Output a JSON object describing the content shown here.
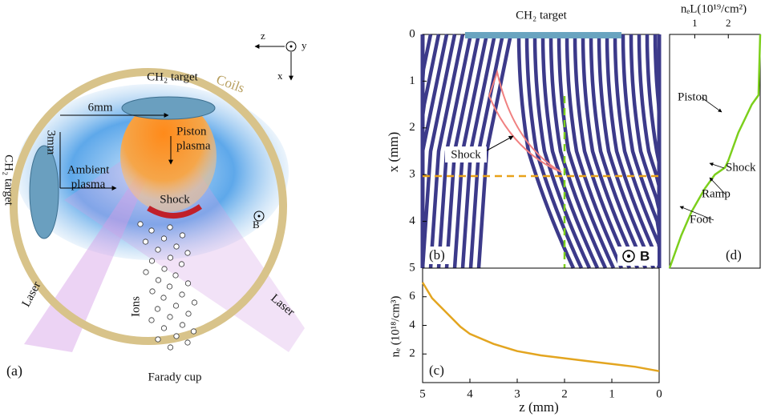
{
  "panel_a": {
    "label": "(a)",
    "coils": "Coils",
    "target_top": "CH₂ target",
    "target_left": "CH₂ target",
    "dist_z": "6mm",
    "dist_x": "3mm",
    "piston": [
      "Piston",
      "plasma"
    ],
    "ambient": [
      "Ambient",
      "plasma"
    ],
    "shock": "Shock",
    "field": "B",
    "laser_left": "Laser",
    "laser_right": "Laser",
    "ions": "Ions",
    "cup": "Farady cup",
    "axis_z": "z",
    "axis_y": "y",
    "axis_x": "x"
  },
  "panel_b": {
    "title": "CH₂ target",
    "label": "(b)",
    "shock": "Shock",
    "field": "B",
    "ylabel": "x (mm)",
    "ylim": [
      5,
      0
    ],
    "yticks": [
      0,
      1,
      2,
      3,
      4,
      5
    ]
  },
  "chart_data": [
    {
      "type": "line",
      "label": "(c)",
      "xlabel": "z (mm)",
      "ylabel": "nₑ (10¹⁸/cm³)",
      "x": [
        5,
        4.8,
        4.5,
        4.2,
        4,
        3.5,
        3,
        2.5,
        2,
        1.5,
        1,
        0.5,
        0
      ],
      "series": [
        {
          "color": "#e3a520",
          "values": [
            7,
            5.9,
            4.9,
            3.9,
            3.4,
            2.7,
            2.2,
            1.9,
            1.7,
            1.5,
            1.3,
            1.1,
            0.8
          ]
        }
      ],
      "xlim": [
        5,
        0
      ],
      "xticks": [
        5,
        4,
        3,
        2,
        1,
        0
      ],
      "ylim": [
        0,
        8
      ],
      "yticks": [
        2,
        4,
        6
      ]
    },
    {
      "type": "line",
      "label": "(d)",
      "xlabel": "nₑL(10¹⁹/cm²)",
      "x": [
        2.95,
        2.9,
        2.7,
        2.5,
        2.3,
        2.1,
        2.0,
        1.9,
        1.6,
        1.3,
        0.9,
        0.6,
        0.25
      ],
      "series": [
        {
          "color": "#7ccf1c",
          "values": [
            0,
            1.3,
            1.5,
            1.8,
            2.1,
            2.5,
            2.7,
            2.85,
            3.0,
            3.3,
            3.8,
            4.3,
            5
          ]
        }
      ],
      "xlim": [
        0.25,
        2.95
      ],
      "xticks": [
        1,
        2
      ],
      "ylim": [
        5,
        0
      ],
      "annotations": [
        "Piston",
        "Shock",
        "Ramp",
        "Foot"
      ]
    }
  ]
}
